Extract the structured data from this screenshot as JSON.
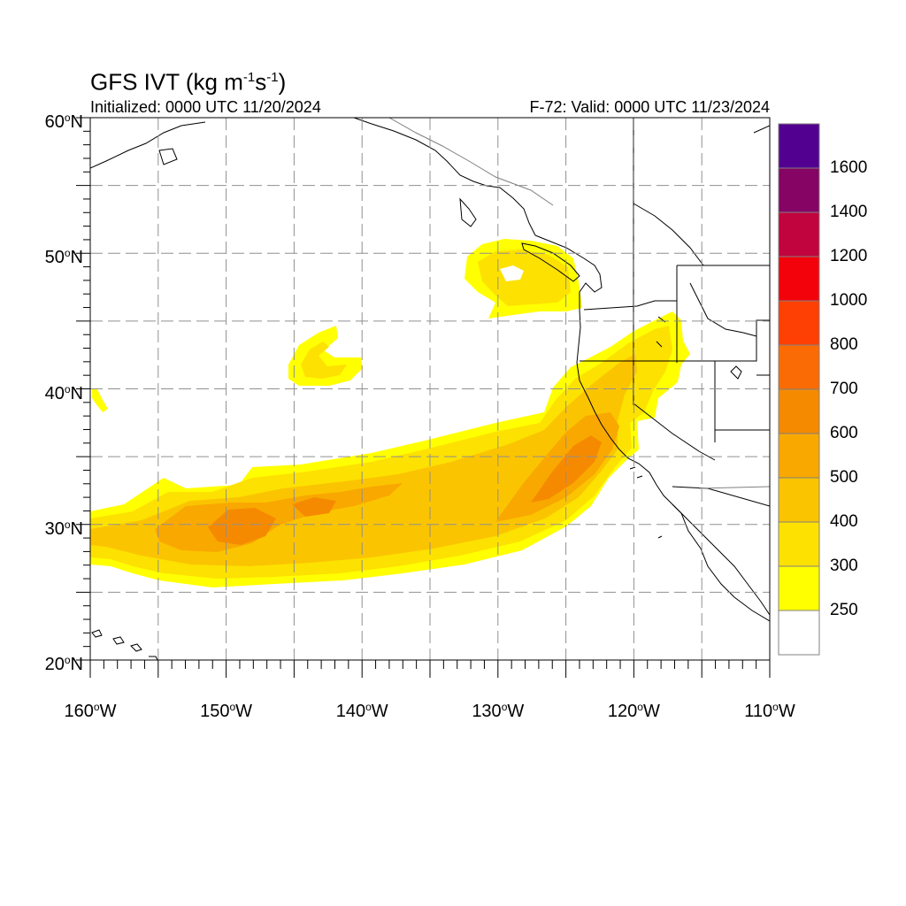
{
  "title": {
    "main": "GFS IVT (kg m",
    "exp1": "-1",
    "mid": "s",
    "exp2": "-1",
    "end": ")"
  },
  "initialized": "Initialized: 0000 UTC 11/20/2024",
  "valid": "F-72: Valid: 0000 UTC 11/23/2024",
  "map": {
    "lat_range": [
      20,
      60
    ],
    "lon_range": [
      -160,
      -110
    ],
    "y_axis_labels": [
      {
        "lat": 60,
        "text": "60",
        "suffix": "N"
      },
      {
        "lat": 50,
        "text": "50",
        "suffix": "N"
      },
      {
        "lat": 40,
        "text": "40",
        "suffix": "N"
      },
      {
        "lat": 30,
        "text": "30",
        "suffix": "N"
      },
      {
        "lat": 20,
        "text": "20",
        "suffix": "N"
      }
    ],
    "x_axis_labels": [
      {
        "lon": -160,
        "text": "160",
        "suffix": "W"
      },
      {
        "lon": -150,
        "text": "150",
        "suffix": "W"
      },
      {
        "lon": -140,
        "text": "140",
        "suffix": "W"
      },
      {
        "lon": -130,
        "text": "130",
        "suffix": "W"
      },
      {
        "lon": -120,
        "text": "120",
        "suffix": "W"
      },
      {
        "lon": -110,
        "text": "110",
        "suffix": "W"
      }
    ],
    "gridlines": "dashed gray every 5 degrees",
    "shading_colors": {
      "250-300": "#ffff00",
      "300-400": "#fde100",
      "400-500": "#fbc400",
      "500-600": "#f9a800",
      "600-700": "#f58a00"
    }
  },
  "colorbar": {
    "levels": [
      {
        "label": "",
        "color": "#ffffff"
      },
      {
        "label": "250",
        "color": "#ffff00"
      },
      {
        "label": "300",
        "color": "#fde100"
      },
      {
        "label": "400",
        "color": "#fbc400"
      },
      {
        "label": "500",
        "color": "#f9a800"
      },
      {
        "label": "600",
        "color": "#f58a00"
      },
      {
        "label": "700",
        "color": "#fb6b05"
      },
      {
        "label": "800",
        "color": "#fe4004"
      },
      {
        "label": "1000",
        "color": "#f3020b"
      },
      {
        "label": "1200",
        "color": "#c2043e"
      },
      {
        "label": "1400",
        "color": "#850464"
      },
      {
        "label": "1600",
        "color": "#520090"
      }
    ]
  }
}
